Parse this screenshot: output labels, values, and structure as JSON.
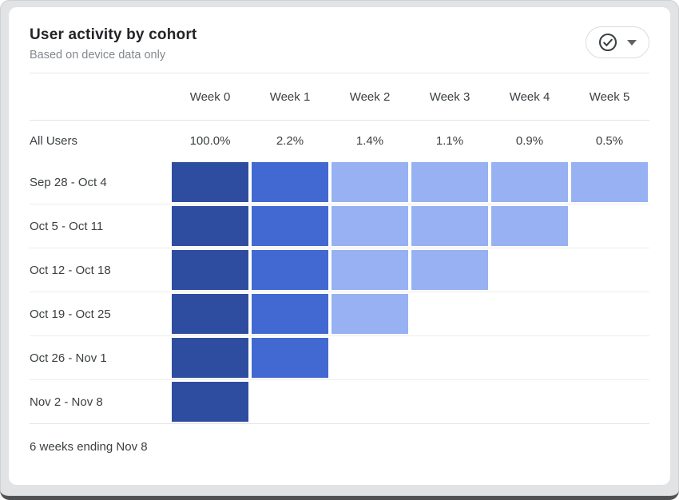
{
  "card": {
    "title": "User activity by cohort",
    "subtitle": "Based on device data only",
    "footer": "6 weeks ending Nov 8",
    "icons": {
      "status": "check-circle",
      "dropdown": "caret-down"
    }
  },
  "table": {
    "week_headers": [
      "Week 0",
      "Week 1",
      "Week 2",
      "Week 3",
      "Week 4",
      "Week 5"
    ],
    "all_users": {
      "label": "All Users",
      "values": [
        "100.0%",
        "2.2%",
        "1.4%",
        "1.1%",
        "0.9%",
        "0.5%"
      ]
    },
    "cohorts": [
      {
        "label": "Sep 28 - Oct 4",
        "cells": [
          "dark",
          "medium",
          "light",
          "light",
          "light",
          "light"
        ]
      },
      {
        "label": "Oct 5 - Oct 11",
        "cells": [
          "dark",
          "medium",
          "light",
          "light",
          "light"
        ]
      },
      {
        "label": "Oct 12 - Oct 18",
        "cells": [
          "dark",
          "medium",
          "light",
          "light"
        ]
      },
      {
        "label": "Oct 19 - Oct 25",
        "cells": [
          "dark",
          "medium",
          "light"
        ]
      },
      {
        "label": "Oct 26 - Nov 1",
        "cells": [
          "dark",
          "medium"
        ]
      },
      {
        "label": "Nov 2 - Nov 8",
        "cells": [
          "dark"
        ]
      }
    ],
    "colors": {
      "dark": "#2f4da0",
      "medium": "#4269d1",
      "light": "#97b1f2"
    }
  },
  "chart_data": {
    "type": "heatmap",
    "title": "User activity by cohort",
    "subtitle": "Based on device data only",
    "columns": [
      "Week 0",
      "Week 1",
      "Week 2",
      "Week 3",
      "Week 4",
      "Week 5"
    ],
    "all_users_retention_pct": [
      100.0,
      2.2,
      1.4,
      1.1,
      0.9,
      0.5
    ],
    "rows": [
      "Sep 28 - Oct 4",
      "Oct 5 - Oct 11",
      "Oct 12 - Oct 18",
      "Oct 19 - Oct 25",
      "Oct 26 - Nov 1",
      "Nov 2 - Nov 8"
    ],
    "cell_intensity": [
      [
        "dark",
        "medium",
        "light",
        "light",
        "light",
        "light"
      ],
      [
        "dark",
        "medium",
        "light",
        "light",
        "light",
        null
      ],
      [
        "dark",
        "medium",
        "light",
        "light",
        null,
        null
      ],
      [
        "dark",
        "medium",
        "light",
        null,
        null,
        null
      ],
      [
        "dark",
        "medium",
        null,
        null,
        null,
        null
      ],
      [
        "dark",
        null,
        null,
        null,
        null,
        null
      ]
    ],
    "legend_position": "none",
    "footnote": "6 weeks ending Nov 8"
  }
}
